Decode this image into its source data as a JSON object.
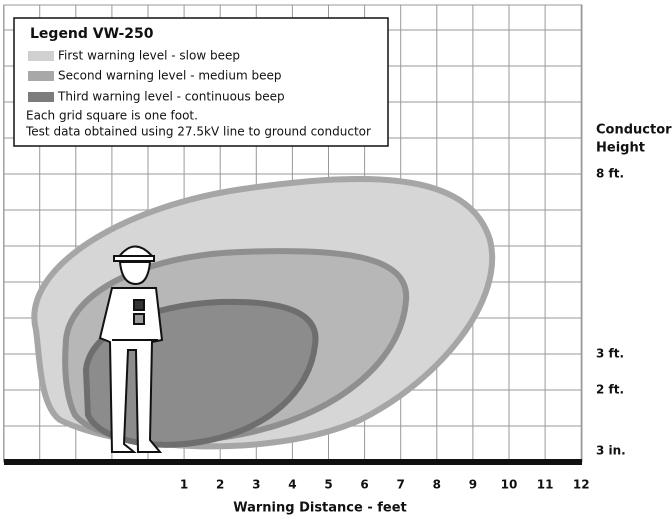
{
  "legend": {
    "title": "Legend  VW-250",
    "items": [
      "First warning level - slow beep",
      "Second warning level - medium beep",
      "Third warning level - continuous beep"
    ],
    "notes": [
      "Each grid square is one foot.",
      "Test data obtained using 27.5kV line to ground conductor"
    ]
  },
  "y_axis": {
    "title": [
      "Conductor",
      "Height"
    ],
    "labels": [
      "8 ft.",
      "3 ft.",
      "2 ft.",
      "3 in."
    ]
  },
  "x_axis": {
    "title": "Warning Distance - feet",
    "labels": [
      "1",
      "2",
      "3",
      "4",
      "5",
      "6",
      "7",
      "8",
      "9",
      "10",
      "11",
      "12"
    ]
  }
}
